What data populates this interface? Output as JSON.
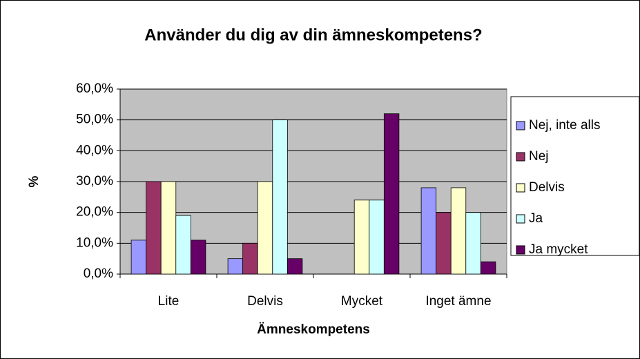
{
  "chart_data": {
    "type": "bar",
    "title": "Använder du dig av din ämneskompetens?",
    "x_label": "Ämneskompetens",
    "y_label": "%",
    "categories": [
      "Lite",
      "Delvis",
      "Mycket",
      "Inget ämne"
    ],
    "series": [
      {
        "name": "Nej, inte alls",
        "color": "#9999ff",
        "values": [
          11,
          5,
          0,
          28
        ]
      },
      {
        "name": "Nej",
        "color": "#993366",
        "values": [
          30,
          10,
          0,
          20
        ]
      },
      {
        "name": "Delvis",
        "color": "#ffffcc",
        "values": [
          30,
          30,
          24,
          28
        ]
      },
      {
        "name": "Ja",
        "color": "#ccffff",
        "values": [
          19,
          50,
          24,
          20
        ]
      },
      {
        "name": "Ja mycket",
        "color": "#660066",
        "values": [
          11,
          5,
          52,
          4
        ]
      }
    ],
    "ylim": [
      0,
      60
    ],
    "yticks": [
      {
        "value": 0,
        "label": "0,0%"
      },
      {
        "value": 10,
        "label": "10,0%"
      },
      {
        "value": 20,
        "label": "20,0%"
      },
      {
        "value": 30,
        "label": "30,0%"
      },
      {
        "value": 40,
        "label": "40,0%"
      },
      {
        "value": 50,
        "label": "50,0%"
      },
      {
        "value": 60,
        "label": "60,0%"
      }
    ],
    "grid": true,
    "legend": "right"
  }
}
